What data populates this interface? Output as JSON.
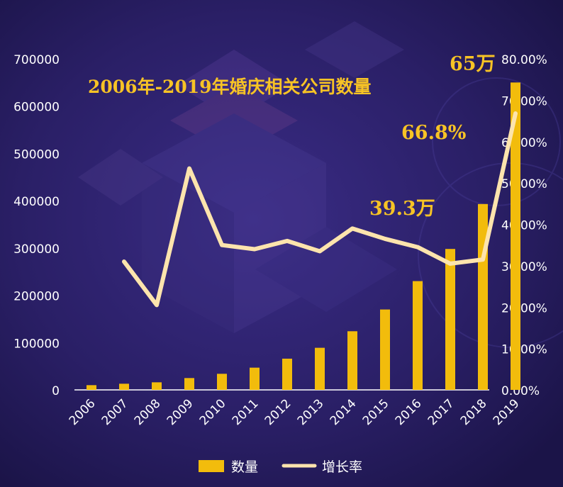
{
  "chart_data": {
    "type": "bar",
    "title": "2006年-2019年婚庆相关公司数量",
    "categories": [
      "2006",
      "2007",
      "2008",
      "2009",
      "2010",
      "2011",
      "2012",
      "2013",
      "2014",
      "2015",
      "2016",
      "2017",
      "2018",
      "2019"
    ],
    "series": [
      {
        "name": "数量",
        "type": "bar",
        "axis": "left",
        "values": [
          10000,
          13000,
          16000,
          25000,
          34000,
          47000,
          66000,
          89000,
          124000,
          170000,
          230000,
          298000,
          393000,
          650000
        ]
      },
      {
        "name": "增长率",
        "type": "line",
        "axis": "right",
        "values": [
          null,
          31.0,
          20.5,
          53.5,
          35.0,
          34.0,
          36.0,
          33.5,
          39.0,
          36.5,
          34.5,
          30.5,
          31.5,
          66.8
        ]
      }
    ],
    "left_axis": {
      "ylim": [
        0,
        700000
      ],
      "ticks": [
        "0",
        "100000",
        "200000",
        "300000",
        "400000",
        "500000",
        "600000",
        "700000"
      ]
    },
    "right_axis": {
      "ylim": [
        0,
        80
      ],
      "ticks": [
        "0.00%",
        "10.00%",
        "20.00%",
        "30.00%",
        "40.00%",
        "50.00%",
        "60.00%",
        "70.00%",
        "80.00%"
      ]
    },
    "annotations": [
      {
        "text": "39.3万",
        "category": "2018"
      },
      {
        "text": "66.8%",
        "category": "2019"
      },
      {
        "text": "65万",
        "category": "2019"
      }
    ],
    "legend": {
      "placement": "bottom",
      "items": [
        "数量",
        "增长率"
      ]
    },
    "grid": false
  },
  "colors": {
    "background": "#241a5a",
    "bar": "#f2bc0c",
    "line": "#fde4ad",
    "title": "#f7c325",
    "text": "#ffffff"
  }
}
